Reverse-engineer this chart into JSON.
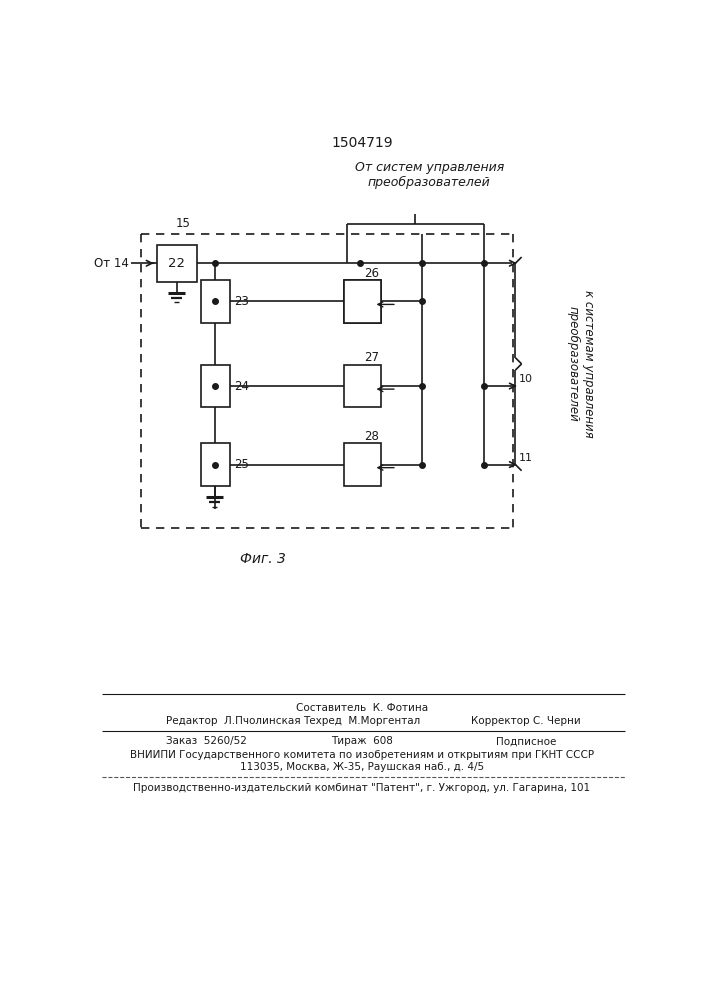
{
  "title": "1504719",
  "fig_caption": "Фиг. 3",
  "label_from14": "От 14",
  "label_15": "15",
  "label_22": "22",
  "label_23": "23",
  "label_24": "24",
  "label_25": "25",
  "label_26": "26",
  "label_27": "27",
  "label_28": "28",
  "label_10": "10",
  "label_11": "11",
  "label_from_systems": "От систем управления\nпреобразователей",
  "label_to_systems": "к системам управления\nпреобразователей",
  "footer_line1": "Составитель  К. Фотина",
  "footer_line2_left": "Редактор  Л.Пчолинская",
  "footer_line2_mid": "Техред  М.Моргентал",
  "footer_line2_right": "Корректор С. Черни",
  "footer_line3_left": "Заказ  5260/52",
  "footer_line3_mid": "Тираж  608",
  "footer_line3_right": "Подписное",
  "footer_line4": "ВНИИПИ Государственного комитета по изобретениям и открытиям при ГКНТ СССР",
  "footer_line5": "113035, Москва, Ж-35, Раушская наб., д. 4/5",
  "footer_line6": "Производственно-издательский комбинат \"Патент\", г. Ужгород, ул. Гагарина, 101",
  "bg_color": "#ffffff",
  "line_color": "#1a1a1a",
  "text_color": "#1a1a1a"
}
